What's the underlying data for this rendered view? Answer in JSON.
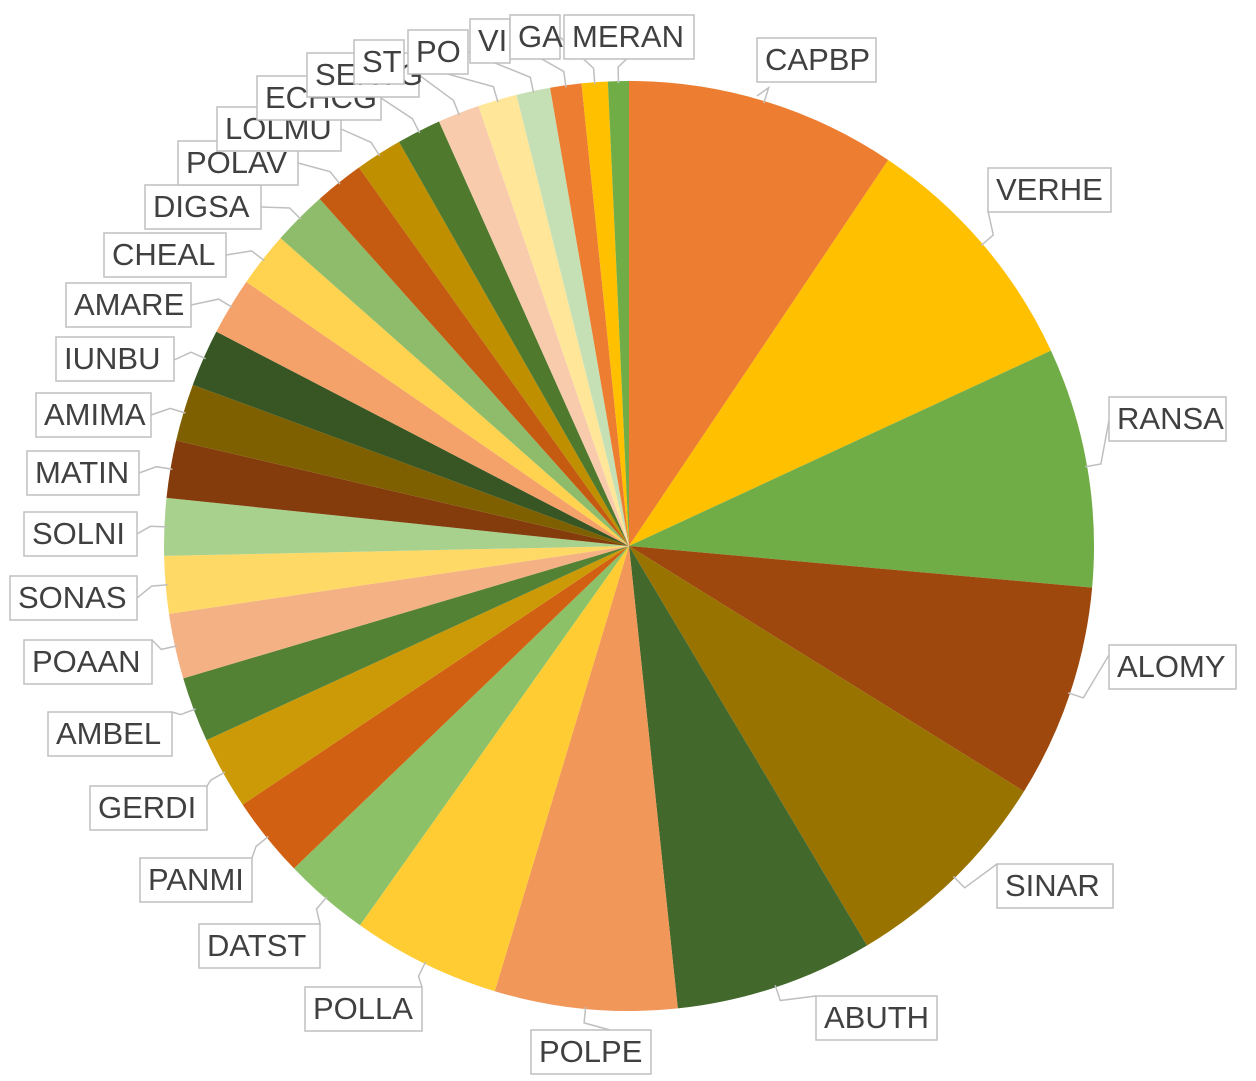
{
  "chart_data": {
    "type": "pie",
    "title": "",
    "start_angle_deg": 0,
    "direction": "clockwise",
    "slices": [
      {
        "label": "CAPBP",
        "value": 10.4,
        "color": "#ed7d31"
      },
      {
        "label": "VERHE",
        "value": 9.6,
        "color": "#ffc000"
      },
      {
        "label": "RANSA",
        "value": 9.2,
        "color": "#70ad47"
      },
      {
        "label": "ALOMY",
        "value": 8.2,
        "color": "#9e480e"
      },
      {
        "label": "SINAR",
        "value": 8.4,
        "color": "#997300"
      },
      {
        "label": "ABUTH",
        "value": 7.6,
        "color": "#43682b"
      },
      {
        "label": "POLPE",
        "value": 7.0,
        "color": "#f1975a"
      },
      {
        "label": "POLLA",
        "value": 5.7,
        "color": "#ffcd33"
      },
      {
        "label": "DATST",
        "value": 3.3,
        "color": "#8cc168"
      },
      {
        "label": "PANMI",
        "value": 3.1,
        "color": "#d26012"
      },
      {
        "label": "GERDI",
        "value": 2.8,
        "color": "#cc9a06"
      },
      {
        "label": "AMBEL",
        "value": 2.5,
        "color": "#548235"
      },
      {
        "label": "POAAN",
        "value": 2.5,
        "color": "#f4b183"
      },
      {
        "label": "SONAS",
        "value": 2.2,
        "color": "#ffd966"
      },
      {
        "label": "SOLNI",
        "value": 2.2,
        "color": "#a9d18e"
      },
      {
        "label": "MATIN",
        "value": 2.2,
        "color": "#843c0c"
      },
      {
        "label": "AMIMA",
        "value": 2.2,
        "color": "#7f6000"
      },
      {
        "label": "IUNBU",
        "value": 2.2,
        "color": "#375623"
      },
      {
        "label": "AMARE",
        "value": 2.2,
        "color": "#f4a26a"
      },
      {
        "label": "CHEAL",
        "value": 2.1,
        "color": "#ffd34f"
      },
      {
        "label": "DIGSA",
        "value": 2.1,
        "color": "#8fbc6a"
      },
      {
        "label": "POLAV",
        "value": 1.9,
        "color": "#c55a11"
      },
      {
        "label": "LOLMU",
        "value": 1.8,
        "color": "#bf8f00"
      },
      {
        "label": "ECHCG",
        "value": 1.7,
        "color": "#4f7a2e"
      },
      {
        "label": "SERVG",
        "value": 1.6,
        "color": "#f8cbad"
      },
      {
        "label": "STEME",
        "value": 1.5,
        "color": "#ffe699"
      },
      {
        "label": "POLCO",
        "value": 1.3,
        "color": "#c5e0b4"
      },
      {
        "label": "VIOAR",
        "value": 1.2,
        "color": "#ed7d31"
      },
      {
        "label": "GALAP",
        "value": 1.0,
        "color": "#ffc000"
      },
      {
        "label": "MERAN",
        "value": 0.8,
        "color": "#70ad47"
      }
    ],
    "callout_texts": [
      "CAPBP",
      "VERHE",
      "RANSA",
      "ALOMY",
      "SINAR",
      "ABUTH",
      "POLPE",
      "POLLA",
      "DATST",
      "PANMI",
      "GERDI",
      "AMBEL",
      "POAAN",
      "SONAS",
      "SOLNI",
      "MATIN",
      "AMIMA",
      "IUNBU",
      "AMARE",
      "CHEAL",
      "DIGSA",
      "POLAV",
      "LOLMU",
      "ECHCG",
      "SERVG",
      "ST",
      "PO",
      "VI",
      "GA",
      "MERAN"
    ]
  }
}
